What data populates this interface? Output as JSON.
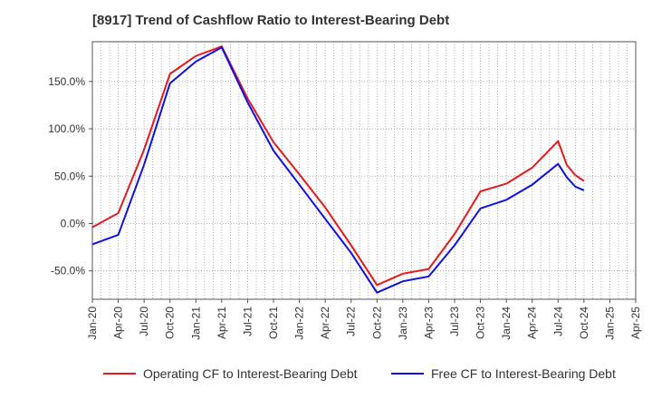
{
  "title": "[8917]  Trend of Cashflow Ratio to Interest-Bearing Debt",
  "chart_data": {
    "type": "line",
    "title": "[8917]  Trend of Cashflow Ratio to Interest-Bearing Debt",
    "xlabel": "",
    "ylabel": "",
    "ylim": [
      -80,
      192
    ],
    "y_ticks": [
      -50,
      0,
      50,
      100,
      150
    ],
    "y_tick_labels": [
      "-50.0%",
      "0.0%",
      "50.0%",
      "100.0%",
      "150.0%"
    ],
    "x_tick_labels": [
      "Jan-20",
      "Apr-20",
      "Jul-20",
      "Oct-20",
      "Jan-21",
      "Apr-21",
      "Jul-21",
      "Oct-21",
      "Jan-22",
      "Apr-22",
      "Jul-22",
      "Oct-22",
      "Jan-23",
      "Apr-23",
      "Jul-23",
      "Oct-23",
      "Jan-24",
      "Apr-24",
      "Jul-24",
      "Oct-24",
      "Jan-25",
      "Apr-25"
    ],
    "x_range": [
      "Jan-20",
      "Apr-25"
    ],
    "grid": "dotted, major and minor vertical lines monthly",
    "legend_position": "bottom",
    "series": [
      {
        "name": "Operating CF to Interest-Bearing Debt",
        "color": "#e41a1c",
        "points": [
          [
            "Jan-20",
            -4
          ],
          [
            "Apr-20",
            11
          ],
          [
            "Jul-20",
            78
          ],
          [
            "Oct-20",
            158
          ],
          [
            "Jan-21",
            177
          ],
          [
            "Apr-21",
            187
          ],
          [
            "Jul-21",
            132
          ],
          [
            "Oct-21",
            86
          ],
          [
            "Jan-22",
            52
          ],
          [
            "Apr-22",
            17
          ],
          [
            "Jul-22",
            -23
          ],
          [
            "Oct-22",
            -65
          ],
          [
            "Jan-23",
            -53
          ],
          [
            "Apr-23",
            -48
          ],
          [
            "Jul-23",
            -11
          ],
          [
            "Oct-23",
            34
          ],
          [
            "Jan-24",
            42
          ],
          [
            "Apr-24",
            59
          ],
          [
            "Jul-24",
            87
          ],
          [
            "Aug-24",
            62
          ],
          [
            "Sep-24",
            51
          ],
          [
            "Oct-24",
            45
          ]
        ]
      },
      {
        "name": "Free CF to Interest-Bearing Debt",
        "color": "#1010e0",
        "points": [
          [
            "Jan-20",
            -22
          ],
          [
            "Apr-20",
            -12
          ],
          [
            "Jul-20",
            62
          ],
          [
            "Oct-20",
            148
          ],
          [
            "Jan-21",
            171
          ],
          [
            "Apr-21",
            186
          ],
          [
            "Jul-21",
            128
          ],
          [
            "Oct-21",
            77
          ],
          [
            "Jan-22",
            41
          ],
          [
            "Apr-22",
            5
          ],
          [
            "Jul-22",
            -31
          ],
          [
            "Oct-22",
            -73
          ],
          [
            "Jan-23",
            -61
          ],
          [
            "Apr-23",
            -56
          ],
          [
            "Jul-23",
            -23
          ],
          [
            "Oct-23",
            16
          ],
          [
            "Jan-24",
            25
          ],
          [
            "Apr-24",
            41
          ],
          [
            "Jul-24",
            63
          ],
          [
            "Aug-24",
            49
          ],
          [
            "Sep-24",
            39
          ],
          [
            "Oct-24",
            35
          ]
        ]
      }
    ]
  }
}
